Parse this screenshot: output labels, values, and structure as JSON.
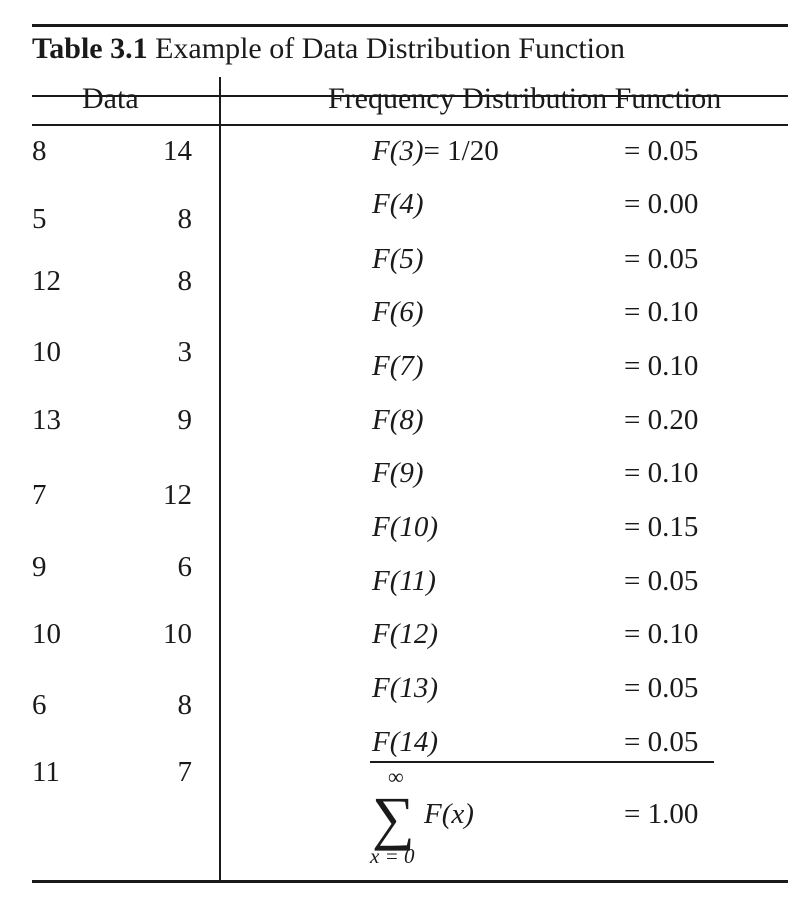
{
  "caption": {
    "number": "Table 3.1",
    "title": "Example of Data Distribution Function"
  },
  "headers": {
    "data": "Data",
    "frequency": "Frequency Distribution Function"
  },
  "data_rows": [
    {
      "a": "8",
      "b": "14"
    },
    {
      "a": "5",
      "b": "8"
    },
    {
      "a": "12",
      "b": "8"
    },
    {
      "a": "10",
      "b": "3"
    },
    {
      "a": "13",
      "b": "9"
    },
    {
      "a": "7",
      "b": "12"
    },
    {
      "a": "9",
      "b": "6"
    },
    {
      "a": "10",
      "b": "10"
    },
    {
      "a": "6",
      "b": "8"
    },
    {
      "a": "11",
      "b": "7"
    }
  ],
  "frequency_rows": [
    {
      "fn": "F(3)",
      "eq": "= 1/20",
      "val": "= 0.05"
    },
    {
      "fn": "F(4)",
      "eq": "",
      "val": "= 0.00"
    },
    {
      "fn": "F(5)",
      "eq": "",
      "val": "= 0.05"
    },
    {
      "fn": "F(6)",
      "eq": "",
      "val": "= 0.10"
    },
    {
      "fn": "F(7)",
      "eq": "",
      "val": "= 0.10"
    },
    {
      "fn": "F(8)",
      "eq": "",
      "val": "= 0.20"
    },
    {
      "fn": "F(9)",
      "eq": "",
      "val": "= 0.10"
    },
    {
      "fn": "F(10)",
      "eq": "",
      "val": "= 0.15"
    },
    {
      "fn": "F(11)",
      "eq": "",
      "val": "= 0.05"
    },
    {
      "fn": "F(12)",
      "eq": "",
      "val": "= 0.10"
    },
    {
      "fn": "F(13)",
      "eq": "",
      "val": "= 0.05"
    },
    {
      "fn": "F(14)",
      "eq": "",
      "val": "= 0.05"
    }
  ],
  "summation": {
    "symbol": "∑",
    "upper": "∞",
    "lower": "x = 0",
    "term": "F(x)",
    "val": "= 1.00"
  }
}
